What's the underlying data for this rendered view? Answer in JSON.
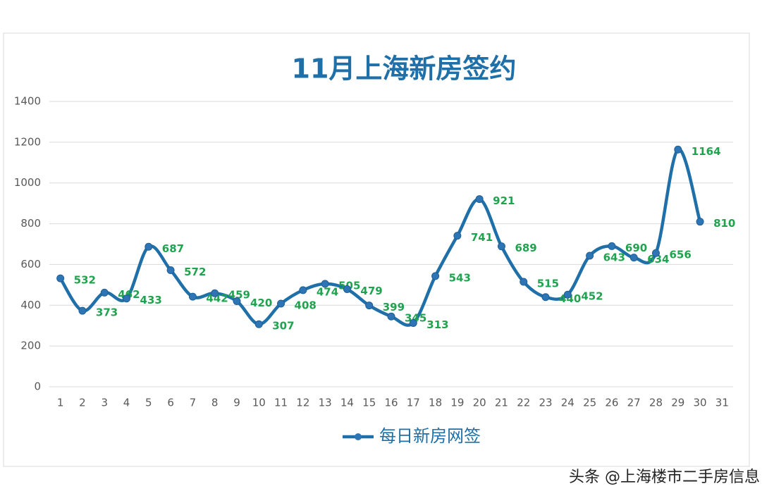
{
  "chart_data": {
    "type": "line",
    "title": "11月上海新房签约",
    "categories": [
      "1",
      "2",
      "3",
      "4",
      "5",
      "6",
      "7",
      "8",
      "9",
      "10",
      "11",
      "12",
      "13",
      "14",
      "15",
      "16",
      "17",
      "18",
      "19",
      "20",
      "21",
      "22",
      "23",
      "24",
      "25",
      "26",
      "27",
      "28",
      "29",
      "30",
      "31"
    ],
    "series": [
      {
        "name": "每日新房网签",
        "color": "#1f6fa8",
        "label_color": "#1fa34f",
        "values": [
          532,
          373,
          462,
          433,
          687,
          572,
          442,
          459,
          420,
          307,
          408,
          474,
          505,
          479,
          399,
          345,
          313,
          543,
          741,
          921,
          689,
          515,
          440,
          452,
          643,
          690,
          634,
          656,
          1164,
          810,
          null
        ]
      }
    ],
    "ylim": [
      0,
      1400
    ],
    "yticks": [
      0,
      200,
      400,
      600,
      800,
      1000,
      1200,
      1400
    ],
    "grid": true,
    "legend": "bottom"
  },
  "watermark": "头条 @上海楼市二手房信息"
}
